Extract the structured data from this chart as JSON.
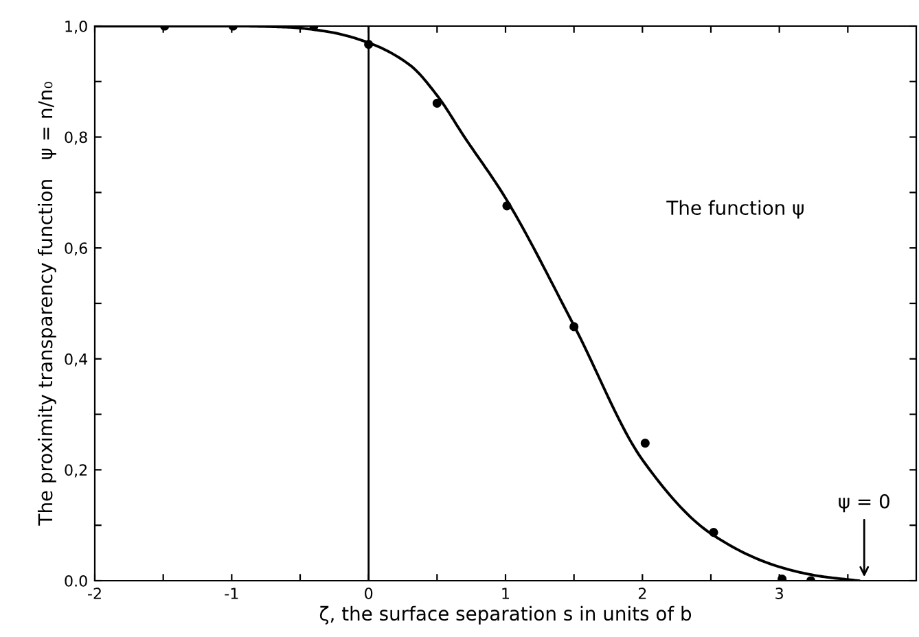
{
  "chart_data": {
    "type": "scatter",
    "xlabel": "ζ, the surface separation s in units of b",
    "ylabel": "The proximity transparency function   ψ = n/n₀",
    "series": [
      {
        "color": "#000000",
        "marker": "circle",
        "x": [
          -1.49,
          -0.99,
          -0.4,
          0.0,
          0.5,
          1.01,
          1.5,
          2.02,
          2.52,
          3.02,
          3.23
        ],
        "values": [
          1.0,
          1.0,
          1.0,
          0.967,
          0.861,
          0.676,
          0.458,
          0.248,
          0.087,
          0.003,
          0.0
        ]
      },
      {
        "type": "line",
        "color": "#000000",
        "marker": "none",
        "line_style": "solid",
        "x": [
          -2.0,
          -1.0,
          -0.6,
          -0.3,
          0.0,
          0.3,
          0.5,
          0.7,
          1.0,
          1.5,
          2.0,
          2.5,
          3.0,
          3.3,
          3.58
        ],
        "values": [
          1.0,
          1.0,
          0.998,
          0.99,
          0.97,
          0.93,
          0.875,
          0.8,
          0.69,
          0.46,
          0.218,
          0.085,
          0.025,
          0.008,
          0.0
        ]
      }
    ],
    "xlim": [
      -2,
      4
    ],
    "xticks": [
      -2,
      -1,
      0,
      1,
      2,
      3,
      {
        "value": -1.5,
        "label": null
      },
      {
        "value": -0.5,
        "label": null
      },
      {
        "value": 0.5,
        "label": null
      },
      {
        "value": 1.5,
        "label": null
      },
      {
        "value": 2.5,
        "label": null
      },
      {
        "value": 3.5,
        "label": null
      }
    ],
    "ylim": [
      0,
      1.0
    ],
    "yticks": [
      {
        "value": 0.0,
        "label": "0.0"
      },
      {
        "value": 0.2,
        "label": "0,2"
      },
      {
        "value": 0.4,
        "label": "0,4"
      },
      {
        "value": 0.6,
        "label": "0,6"
      },
      {
        "value": 0.8,
        "label": "0,8"
      },
      {
        "value": 1.0,
        "label": "1,0"
      },
      {
        "value": 0.1,
        "label": null
      },
      {
        "value": 0.3,
        "label": null
      },
      {
        "value": 0.5,
        "label": null
      },
      {
        "value": 0.7,
        "label": null
      },
      {
        "value": 0.9,
        "label": null
      }
    ],
    "ref_lines": [
      {
        "axis": "x",
        "value": 0,
        "color": "#000000",
        "line_style": "solid"
      }
    ],
    "annotations": [
      "The function ψ",
      {
        "text": "ψ = 0",
        "x": 3.62,
        "y": 0.0
      }
    ],
    "grid": false,
    "legend": false
  }
}
